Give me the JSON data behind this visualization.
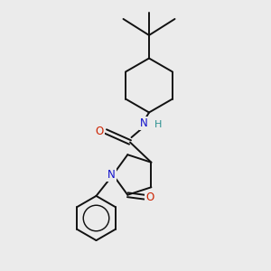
{
  "background_color": "#ebebeb",
  "atom_colors": {
    "C": "#000000",
    "N": "#1010cc",
    "O": "#cc2200",
    "H": "#2a9090"
  },
  "bond_color": "#111111",
  "bond_width": 1.4,
  "figsize": [
    3.0,
    3.0
  ],
  "dpi": 100,
  "xlim": [
    0,
    10
  ],
  "ylim": [
    0,
    10
  ],
  "font_size_atom": 8.5,
  "font_size_h": 8.0
}
